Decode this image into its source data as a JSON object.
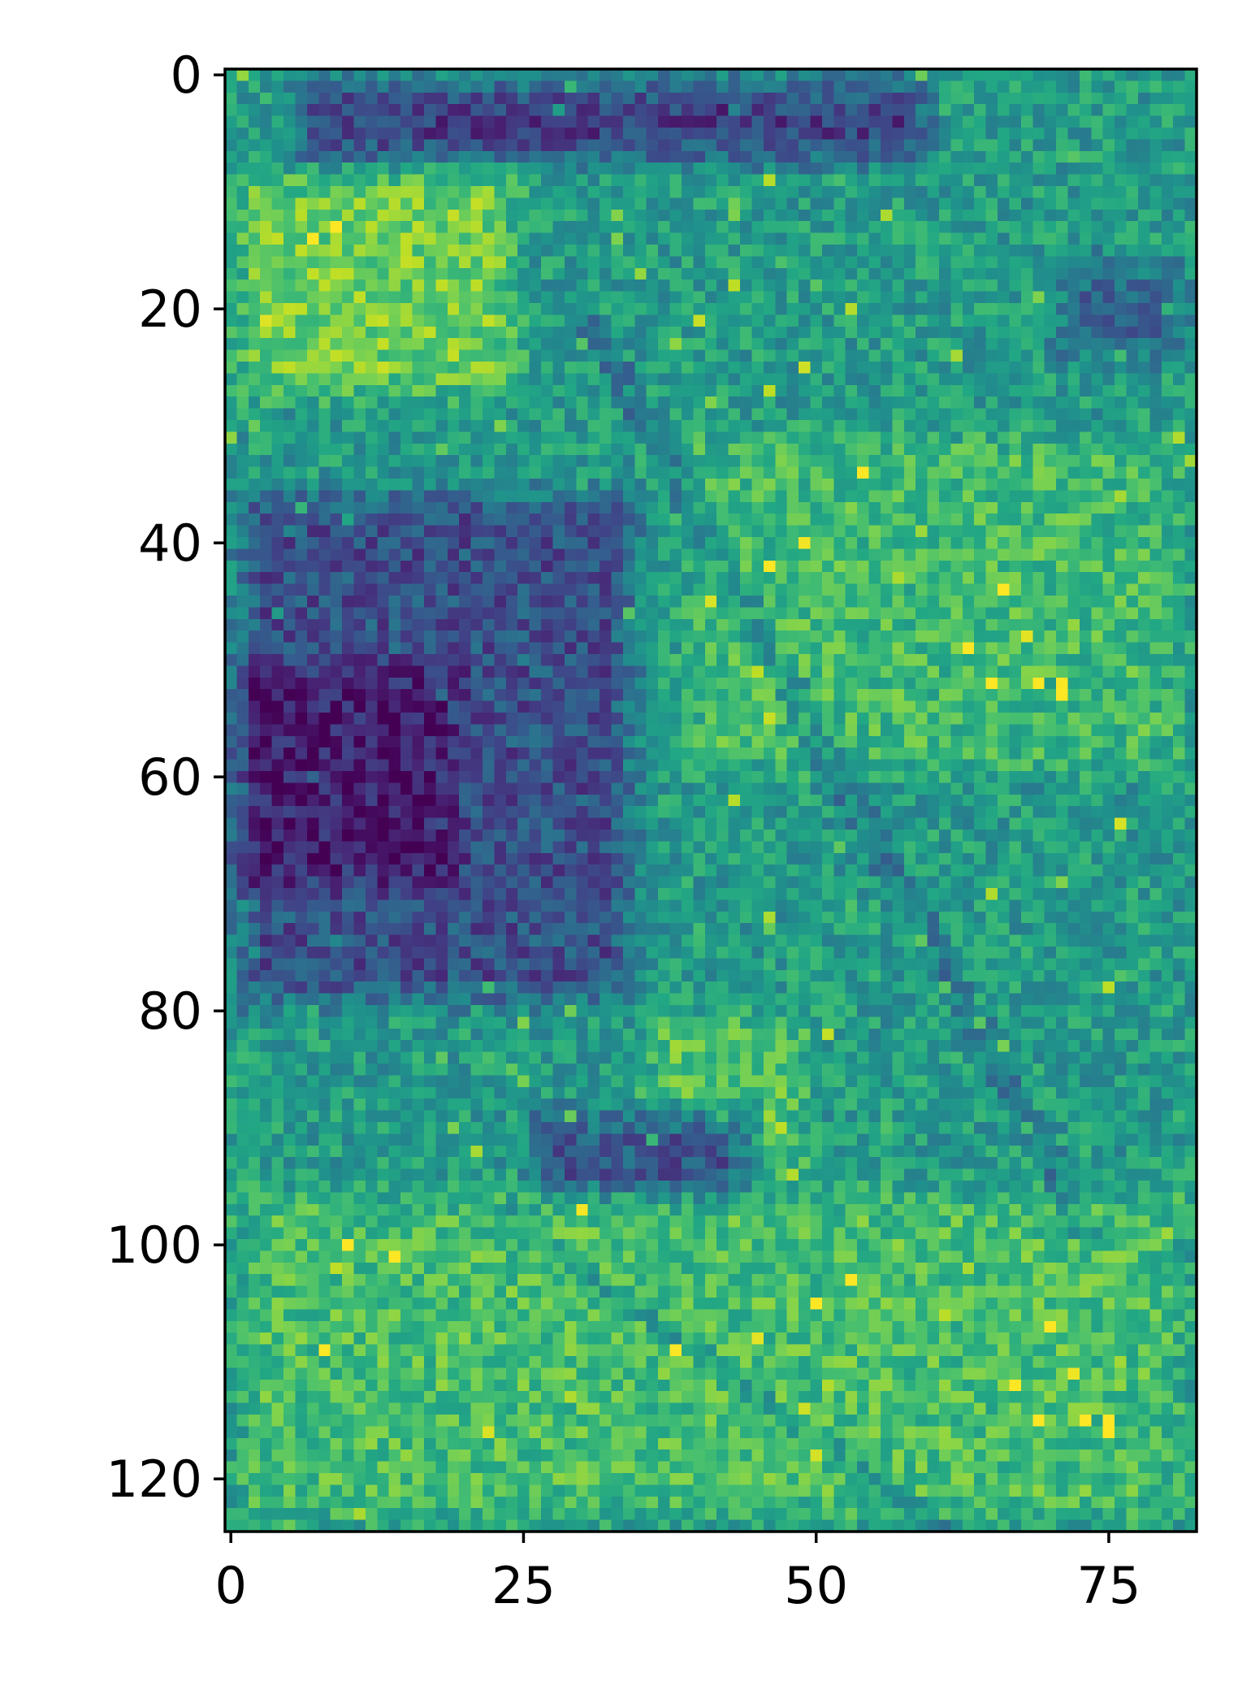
{
  "chart_data": {
    "type": "heatmap",
    "title": "",
    "xlabel": "",
    "ylabel": "",
    "colormap": "viridis",
    "colorbar": false,
    "n_rows": 125,
    "n_cols": 83,
    "xlim": [
      -0.5,
      82.5
    ],
    "ylim": [
      124.5,
      -0.5
    ],
    "xticks": [
      0,
      25,
      50,
      75
    ],
    "xtick_labels": [
      "0",
      "25",
      "50",
      "75"
    ],
    "yticks": [
      0,
      20,
      40,
      60,
      80,
      100,
      120
    ],
    "ytick_labels": [
      "0",
      "20",
      "40",
      "60",
      "80",
      "100",
      "120"
    ],
    "grid": false,
    "value_range": [
      0,
      1
    ],
    "regions_description_note": null,
    "regions": [
      {
        "row_range": [
          0,
          8
        ],
        "col_range": [
          5,
          60
        ],
        "level": 0.2
      },
      {
        "row_range": [
          8,
          28
        ],
        "col_range": [
          0,
          25
        ],
        "level": 0.78
      },
      {
        "row_range": [
          15,
          25
        ],
        "col_range": [
          70,
          82
        ],
        "level": 0.35
      },
      {
        "row_range": [
          35,
          80
        ],
        "col_range": [
          0,
          35
        ],
        "level": 0.25
      },
      {
        "row_range": [
          50,
          70
        ],
        "col_range": [
          0,
          20
        ],
        "level": 0.08
      },
      {
        "row_range": [
          30,
          60
        ],
        "col_range": [
          38,
          82
        ],
        "level": 0.68
      },
      {
        "row_range": [
          80,
          95
        ],
        "col_range": [
          35,
          50
        ],
        "level": 0.72
      },
      {
        "row_range": [
          88,
          98
        ],
        "col_range": [
          25,
          45
        ],
        "level": 0.28
      },
      {
        "row_range": [
          95,
          124
        ],
        "col_range": [
          0,
          82
        ],
        "level": 0.7
      }
    ],
    "base_level": 0.55
  },
  "colors": {
    "axis": "#000000",
    "background": "#ffffff"
  }
}
